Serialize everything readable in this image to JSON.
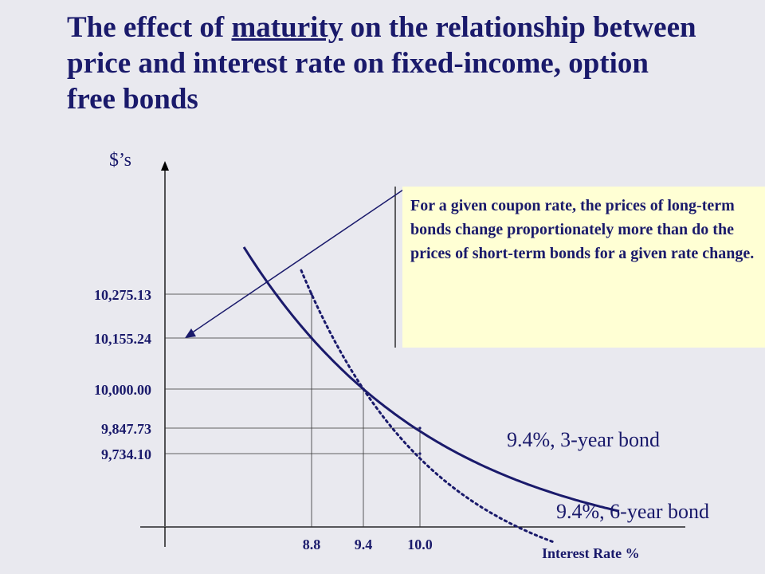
{
  "title": {
    "before": "The effect of ",
    "emphasis": "maturity",
    "after": " on the relationship between price and interest rate on fixed-income, option free bonds"
  },
  "callout_text": "For a given coupon rate, the prices of long-term bonds change proportionately more than do the prices of short-term bonds for a given rate change.",
  "colors": {
    "curve": "#1a1a6b",
    "text": "#1a1a6b",
    "callout_bg": "#ffffd4",
    "background": "#e9e9ef"
  },
  "chart_data": {
    "type": "line",
    "ylabel": "$’s",
    "xlabel": "Interest Rate %",
    "x_ticks": [
      "8.8",
      "9.4",
      "10.0"
    ],
    "y_ticks": [
      "10,275.13",
      "10,155.24",
      "10,000.00",
      "9,847.73",
      "9,734.10"
    ],
    "series": [
      {
        "name": "9.4%, 3-year bond",
        "style": "solid",
        "points": [
          {
            "x": 8.8,
            "y": 10155.24
          },
          {
            "x": 9.4,
            "y": 10000.0
          },
          {
            "x": 10.0,
            "y": 9847.73
          }
        ]
      },
      {
        "name": "9.4%, 6-year bond",
        "style": "dotted",
        "points": [
          {
            "x": 8.8,
            "y": 10275.13
          },
          {
            "x": 9.4,
            "y": 10000.0
          },
          {
            "x": 10.0,
            "y": 9734.1
          }
        ]
      }
    ]
  }
}
